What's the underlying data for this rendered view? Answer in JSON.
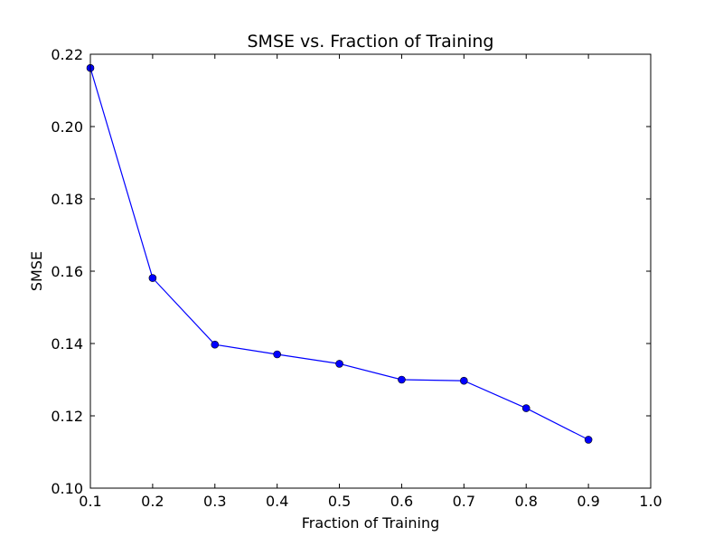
{
  "chart_data": {
    "type": "line",
    "title": "SMSE vs. Fraction of Training",
    "xlabel": "Fraction of Training",
    "ylabel": "SMSE",
    "xlim": [
      0.1,
      1.0
    ],
    "ylim": [
      0.1,
      0.22
    ],
    "xticks": [
      "0.1",
      "0.2",
      "0.3",
      "0.4",
      "0.5",
      "0.6",
      "0.7",
      "0.8",
      "0.9",
      "1.0"
    ],
    "yticks": [
      "0.10",
      "0.12",
      "0.14",
      "0.16",
      "0.18",
      "0.20",
      "0.22"
    ],
    "grid": false,
    "legend": "none",
    "series": [
      {
        "color": "#0000ff",
        "marker": "circle",
        "x": [
          0.1,
          0.2,
          0.3,
          0.4,
          0.5,
          0.6,
          0.7,
          0.8,
          0.9
        ],
        "y": [
          0.2162,
          0.1581,
          0.1397,
          0.137,
          0.1344,
          0.13,
          0.1297,
          0.1221,
          0.1134
        ]
      }
    ]
  }
}
